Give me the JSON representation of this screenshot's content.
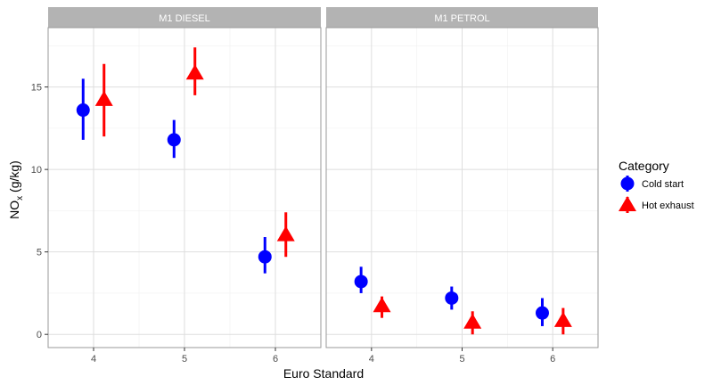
{
  "chart_data": {
    "type": "pointrange",
    "facets": [
      "M1 DIESEL",
      "M1 PETROL"
    ],
    "x": [
      4,
      5,
      6
    ],
    "x_ticks": [
      "4",
      "5",
      "6"
    ],
    "y_ticks": [
      "0",
      "5",
      "10",
      "15"
    ],
    "ylim": [
      -0.8,
      18.6
    ],
    "xlabel": "Euro Standard",
    "ylabel": {
      "base": "NO",
      "sub": "x",
      "suffix": " (g/kg)"
    },
    "legend": {
      "title": "Category",
      "position": "right"
    },
    "grid": true,
    "series": [
      {
        "name": "Cold start",
        "color": "#0000ff",
        "shape": "circle",
        "facet_points": [
          [
            {
              "x": 4,
              "y": 13.6,
              "lo": 11.8,
              "hi": 15.5
            },
            {
              "x": 5,
              "y": 11.8,
              "lo": 10.7,
              "hi": 13.0
            },
            {
              "x": 6,
              "y": 4.7,
              "lo": 3.7,
              "hi": 5.9
            }
          ],
          [
            {
              "x": 4,
              "y": 3.2,
              "lo": 2.5,
              "hi": 4.1
            },
            {
              "x": 5,
              "y": 2.2,
              "lo": 1.5,
              "hi": 2.9
            },
            {
              "x": 6,
              "y": 1.3,
              "lo": 0.5,
              "hi": 2.2
            }
          ]
        ]
      },
      {
        "name": "Hot exhaust",
        "color": "#ff0000",
        "shape": "triangle",
        "facet_points": [
          [
            {
              "x": 4,
              "y": 14.2,
              "lo": 12.0,
              "hi": 16.4
            },
            {
              "x": 5,
              "y": 15.8,
              "lo": 14.5,
              "hi": 17.4
            },
            {
              "x": 6,
              "y": 6.0,
              "lo": 4.7,
              "hi": 7.4
            }
          ],
          [
            {
              "x": 4,
              "y": 1.7,
              "lo": 1.0,
              "hi": 2.3
            },
            {
              "x": 5,
              "y": 0.7,
              "lo": 0.0,
              "hi": 1.4
            },
            {
              "x": 6,
              "y": 0.8,
              "lo": 0.0,
              "hi": 1.6
            }
          ]
        ]
      }
    ]
  }
}
